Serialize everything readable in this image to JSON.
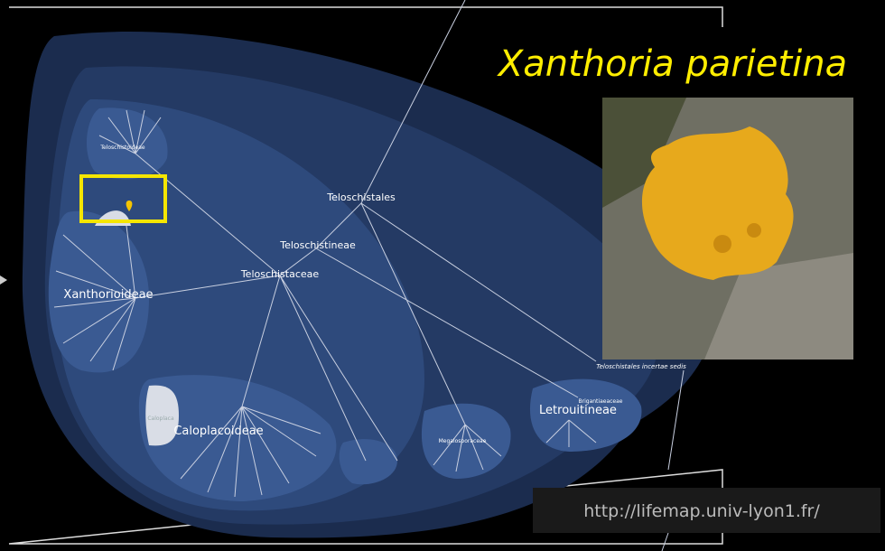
{
  "title": "Xanthoria parietina",
  "url": "http://lifemap.univ-lyon1.fr/",
  "nodes": [
    {
      "label": "Teloschistales"
    },
    {
      "label": "Teloschistineae"
    },
    {
      "label": "Teloschistaceae"
    },
    {
      "label": "Teloschistoideae"
    },
    {
      "label": "Xanthorioideae"
    },
    {
      "label": "Caloplacoideae"
    },
    {
      "label": "Caloplaca"
    },
    {
      "label": "Megalosporaceae"
    },
    {
      "label": "Letrouitineae"
    },
    {
      "label": "Brigantiaeaceae"
    },
    {
      "label": "Teloschistales incertae sedis"
    }
  ]
}
